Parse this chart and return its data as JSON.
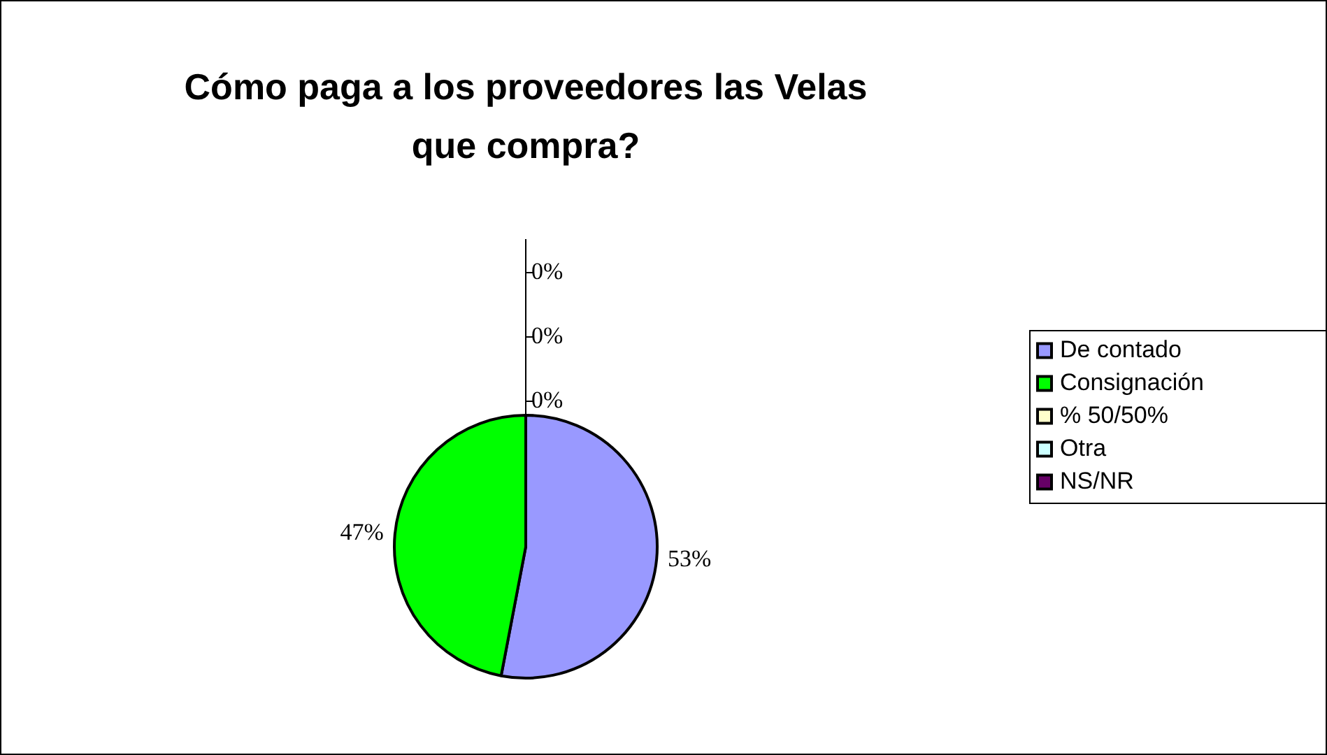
{
  "chart_data": {
    "type": "pie",
    "title": "Cómo paga a los proveedores las Velas que compra?",
    "categories": [
      "De contado",
      "Consignación",
      "% 50/50%",
      "Otra",
      "NS/NR"
    ],
    "values": [
      53,
      47,
      0,
      0,
      0
    ],
    "colors": [
      "#9999ff",
      "#00ff00",
      "#ffffcc",
      "#ccffff",
      "#660066"
    ],
    "value_labels": [
      "53%",
      "47%",
      "0%",
      "0%",
      "0%"
    ],
    "legend": "right"
  }
}
